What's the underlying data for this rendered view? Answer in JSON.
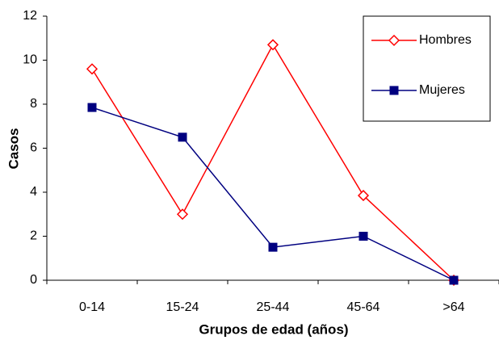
{
  "chart_data": {
    "type": "line",
    "x_label": "Grupos de edad (años)",
    "y_label": "Casos",
    "categories": [
      "0-14",
      "15-24",
      "25-44",
      "45-64",
      ">64"
    ],
    "series": [
      {
        "name": "Hombres",
        "color": "#ff0000",
        "marker": "diamond",
        "values": [
          9.6,
          3.0,
          10.7,
          3.85,
          0
        ]
      },
      {
        "name": "Mujeres",
        "color": "#000080",
        "marker": "square",
        "values": [
          7.85,
          6.5,
          1.5,
          2.0,
          0
        ]
      }
    ],
    "ylim": [
      0,
      12
    ],
    "yticks": [
      0,
      2,
      4,
      6,
      8,
      10,
      12
    ],
    "grid": false,
    "legend": "top-right"
  }
}
